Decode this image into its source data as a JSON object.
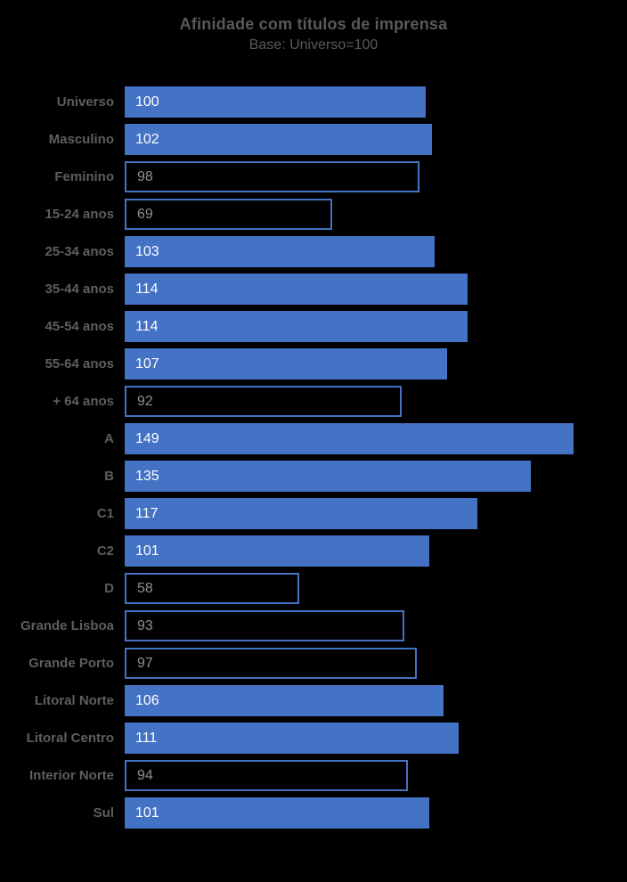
{
  "title": "Afinidade com títulos de imprensa",
  "subtitle": "Base: Universo=100",
  "colors": {
    "background": "#000000",
    "bar_fill": "#4472C4",
    "bar_outline": "#4472C4",
    "title_text": "#595959",
    "category_label_text": "#5E5E5E",
    "value_text_on_filled": "#FFFFFF",
    "value_text_on_outlined": "#8F8F8F"
  },
  "chart_data": {
    "type": "bar",
    "orientation": "horizontal",
    "title": "Afinidade com títulos de imprensa",
    "subtitle": "Base: Universo=100",
    "categories": [
      "Universo",
      "Masculino",
      "Feminino",
      "15-24 anos",
      "25-34 anos",
      "35-44 anos",
      "45-54 anos",
      "55-64 anos",
      "+ 64 anos",
      "A",
      "B",
      "C1",
      "C2",
      "D",
      "Grande Lisboa",
      "Grande Porto",
      "Litoral Norte",
      "Litoral Centro",
      "Interior Norte",
      "Sul"
    ],
    "values": [
      100,
      102,
      98,
      69,
      103,
      114,
      114,
      107,
      92,
      149,
      135,
      117,
      101,
      58,
      93,
      97,
      106,
      111,
      94,
      101
    ],
    "filled": [
      true,
      true,
      false,
      false,
      true,
      true,
      true,
      true,
      false,
      true,
      true,
      true,
      true,
      false,
      false,
      false,
      true,
      true,
      false,
      true
    ],
    "style_rule": "bars with value >= 100 are solid filled, bars with value < 100 are outlined only",
    "data_labels": "inside-left",
    "xlim": [
      0,
      160
    ],
    "grid": false,
    "legend": "none"
  }
}
